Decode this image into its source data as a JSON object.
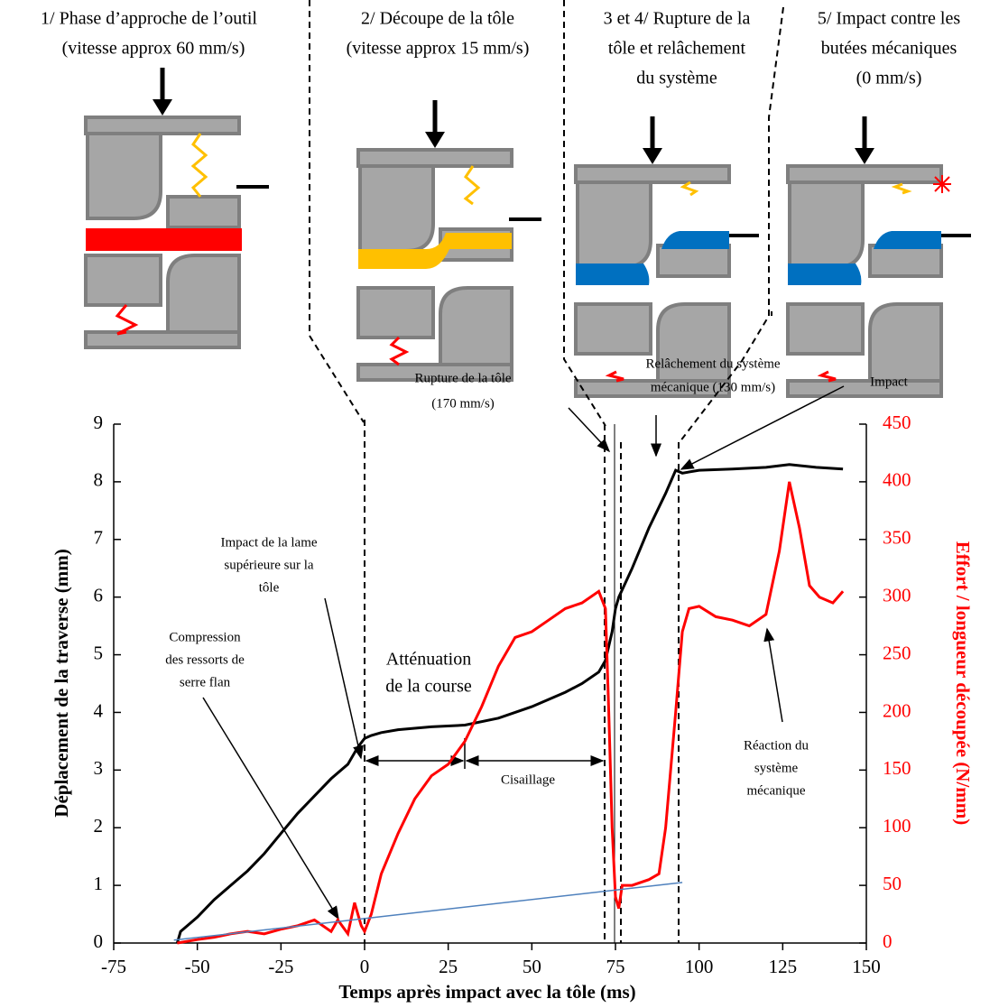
{
  "chart_data": {
    "type": "line",
    "x_label": "Temps après impact avec la tôle (ms)",
    "y_label": "Déplacement de la traverse (mm)",
    "y2_label": "Effort / longueur découpée (N/mm)",
    "xlim": [
      -75,
      150
    ],
    "xticks": [
      -75,
      -50,
      -25,
      0,
      25,
      50,
      75,
      100,
      125,
      150
    ],
    "ylim": [
      0,
      9
    ],
    "yticks": [
      0,
      1,
      2,
      3,
      4,
      5,
      6,
      7,
      8,
      9
    ],
    "y2lim": [
      0,
      450
    ],
    "y2ticks": [
      0,
      50,
      100,
      150,
      200,
      250,
      300,
      350,
      400,
      450
    ],
    "y2_color": "#ff0000",
    "series": [
      {
        "color": "#000000",
        "axis": "y",
        "x": [
          -56,
          -55,
          -50,
          -45,
          -40,
          -35,
          -30,
          -25,
          -20,
          -15,
          -10,
          -5,
          -2,
          0,
          2,
          5,
          10,
          20,
          30,
          40,
          50,
          60,
          65,
          70,
          72,
          74,
          75,
          76,
          80,
          85,
          90,
          93,
          95,
          100,
          110,
          120,
          127,
          135,
          143
        ],
        "values": [
          0,
          0.2,
          0.45,
          0.75,
          1.0,
          1.25,
          1.55,
          1.9,
          2.25,
          2.55,
          2.85,
          3.1,
          3.4,
          3.55,
          3.6,
          3.65,
          3.7,
          3.75,
          3.78,
          3.9,
          4.1,
          4.35,
          4.5,
          4.7,
          4.9,
          5.4,
          5.8,
          6.0,
          6.5,
          7.2,
          7.8,
          8.2,
          8.15,
          8.2,
          8.22,
          8.25,
          8.3,
          8.25,
          8.22
        ]
      },
      {
        "color": "#ff0000",
        "axis": "y2",
        "x": [
          -56,
          -50,
          -45,
          -40,
          -35,
          -30,
          -25,
          -20,
          -15,
          -10,
          -8,
          -5,
          -3,
          -1,
          0,
          2,
          5,
          10,
          15,
          20,
          25,
          30,
          35,
          40,
          45,
          50,
          55,
          60,
          65,
          70,
          72,
          73,
          74,
          75,
          76,
          77,
          80,
          85,
          88,
          90,
          93,
          95,
          97,
          100,
          105,
          110,
          115,
          120,
          124,
          127,
          130,
          133,
          136,
          140,
          143
        ],
        "values": [
          0,
          3,
          5,
          8,
          10,
          8,
          12,
          15,
          20,
          10,
          20,
          8,
          35,
          15,
          10,
          25,
          60,
          95,
          125,
          145,
          155,
          175,
          205,
          240,
          265,
          270,
          280,
          290,
          295,
          305,
          290,
          200,
          100,
          40,
          30,
          50,
          50,
          55,
          60,
          100,
          200,
          270,
          290,
          292,
          283,
          280,
          275,
          285,
          340,
          400,
          360,
          310,
          300,
          295,
          305
        ]
      },
      {
        "color": "#4f81bd",
        "axis": "y",
        "x": [
          -57,
          95
        ],
        "values": [
          0.05,
          1.05
        ]
      }
    ]
  },
  "phases": [
    [
      "1/ Phase d’approche de l’outil",
      "(vitesse approx 60 mm/s)"
    ],
    [
      "2/ Découpe de la tôle",
      "(vitesse approx 15 mm/s)"
    ],
    [
      "3 et 4/ Rupture de la",
      "tôle et relâchement",
      "du système"
    ],
    [
      "5/ Impact contre les",
      "butées mécaniques",
      "(0 mm/s)"
    ]
  ],
  "annotations": [
    [
      "Rupture de la tôle",
      "(170 mm/s)"
    ],
    [
      "Relâchement du système",
      "mécanique (130 mm/s)"
    ],
    [
      "Impact"
    ],
    [
      "Impact de la lame",
      "supérieure sur la",
      "tôle"
    ],
    [
      "Compression",
      "des ressorts de",
      "serre flan"
    ],
    [
      "Atténuation",
      "de la course"
    ],
    [
      "Cisaillage"
    ],
    [
      "Réaction du",
      "système",
      "mécanique"
    ]
  ]
}
